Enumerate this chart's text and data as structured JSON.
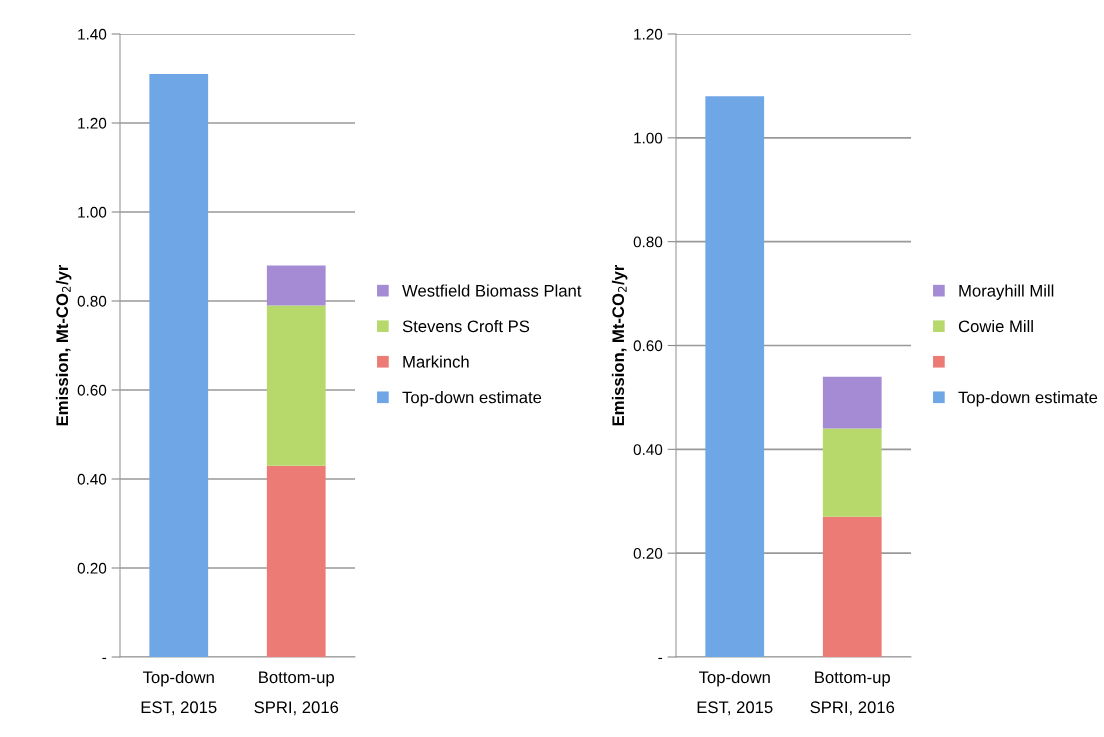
{
  "chart_data": [
    {
      "type": "bar",
      "stacked": true,
      "ylabel": "Emission, Mt-CO$_{2}$/yr",
      "categories": [
        "Top-down\nEST, 2015",
        "Bottom-up\nSPRI, 2016"
      ],
      "ylim": [
        0,
        1.4
      ],
      "yticks": [
        {
          "value": 0,
          "label": "-"
        },
        {
          "value": 0.2,
          "label": "0.20"
        },
        {
          "value": 0.4,
          "label": "0.40"
        },
        {
          "value": 0.6,
          "label": "0.60"
        },
        {
          "value": 0.8,
          "label": "0.80"
        },
        {
          "value": 1.0,
          "label": "1.00"
        },
        {
          "value": 1.2,
          "label": "1.20"
        },
        {
          "value": 1.4,
          "label": "1.40"
        }
      ],
      "grid": "y",
      "legend": "right",
      "series": [
        {
          "name": "Top-down estimate",
          "color": "#6fa6e6",
          "values": [
            1.31,
            null
          ]
        },
        {
          "name": "Markinch",
          "color": "#ec7b76",
          "values": [
            null,
            0.43
          ]
        },
        {
          "name": "Stevens Croft PS",
          "color": "#b7d96c",
          "values": [
            null,
            0.36
          ]
        },
        {
          "name": "Westfield Biomass Plant",
          "color": "#a58bd3",
          "values": [
            null,
            0.09
          ]
        }
      ]
    },
    {
      "type": "bar",
      "stacked": true,
      "ylabel": "Emission, Mt-CO$_{2}$/yr",
      "categories": [
        "Top-down\nEST, 2015",
        "Bottom-up\nSPRI, 2016"
      ],
      "ylim": [
        0,
        1.2
      ],
      "yticks": [
        {
          "value": 0,
          "label": "-"
        },
        {
          "value": 0.2,
          "label": "0.20"
        },
        {
          "value": 0.4,
          "label": "0.40"
        },
        {
          "value": 0.6,
          "label": "0.60"
        },
        {
          "value": 0.8,
          "label": "0.80"
        },
        {
          "value": 1.0,
          "label": "1.00"
        },
        {
          "value": 1.2,
          "label": "1.20"
        }
      ],
      "grid": "y",
      "legend": "right",
      "series": [
        {
          "name": "Top-down estimate",
          "color": "#6fa6e6",
          "values": [
            1.08,
            null
          ]
        },
        {
          "name": null,
          "color": "#ec7b76",
          "values": [
            null,
            0.27
          ]
        },
        {
          "name": "Cowie Mill",
          "color": "#b7d96c",
          "values": [
            null,
            0.17
          ]
        },
        {
          "name": "Morayhill Mill",
          "color": "#a58bd3",
          "values": [
            null,
            0.1
          ]
        }
      ]
    }
  ]
}
